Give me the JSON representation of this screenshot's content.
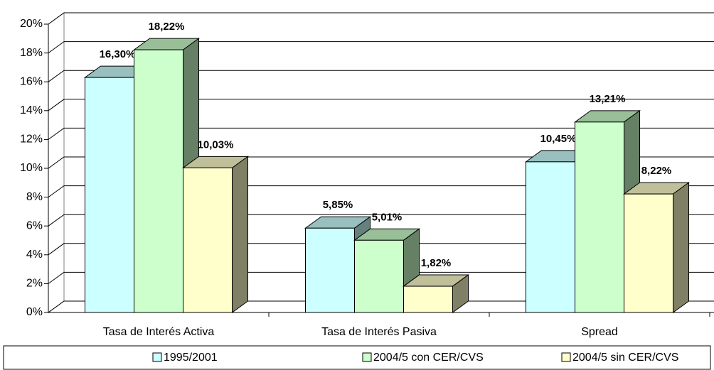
{
  "chart_data": {
    "type": "bar3d",
    "categories": [
      "Tasa de Interés Activa",
      "Tasa de Interés Pasiva",
      "Spread"
    ],
    "series": [
      {
        "name": "1995/2001",
        "color": "#ccffff",
        "values": [
          16.3,
          5.85,
          10.45
        ],
        "value_labels": [
          "16,30%",
          "5,85%",
          "10,45%"
        ]
      },
      {
        "name": "2004/5 con CER/CVS",
        "color": "#ccffcc",
        "values": [
          18.22,
          5.01,
          13.21
        ],
        "value_labels": [
          "18,22%",
          "5,01%",
          "13,21%"
        ]
      },
      {
        "name": "2004/5 sin CER/CVS",
        "color": "#ffffcc",
        "values": [
          10.03,
          1.82,
          8.22
        ],
        "value_labels": [
          "10,03%",
          "1,82%",
          "8,22%"
        ]
      }
    ],
    "ylim": [
      0,
      20
    ],
    "yticks": [
      {
        "value": 0,
        "label": "0%"
      },
      {
        "value": 2,
        "label": "2%"
      },
      {
        "value": 4,
        "label": "4%"
      },
      {
        "value": 6,
        "label": "6%"
      },
      {
        "value": 8,
        "label": "8%"
      },
      {
        "value": 10,
        "label": "10%"
      },
      {
        "value": 12,
        "label": "12%"
      },
      {
        "value": 14,
        "label": "14%"
      },
      {
        "value": 16,
        "label": "16%"
      },
      {
        "value": 18,
        "label": "18%"
      },
      {
        "value": 20,
        "label": "20%"
      }
    ],
    "grid": true,
    "legend": "bottom"
  }
}
